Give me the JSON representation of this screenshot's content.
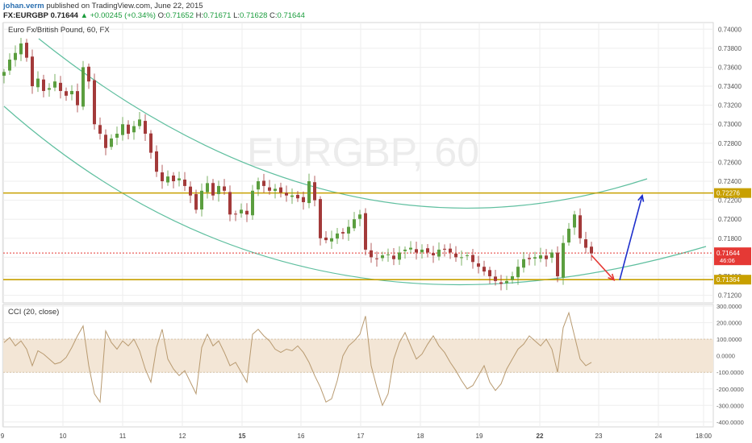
{
  "header": {
    "author": "johan.verm",
    "published_text": "published on TradingView.com, June 22, 2015",
    "symbol": "FX:EURGBP",
    "last": "0.71644",
    "change_arrow": "▲",
    "change": "+0.00245 (+0.34%)",
    "o_label": "O:",
    "o_value": "0.71652",
    "h_label": "H:",
    "h_value": "0.71671",
    "l_label": "L:",
    "l_value": "0.71628",
    "c_label": "C:",
    "c_value": "0.71644"
  },
  "watermark": "EURGBP, 60",
  "chart_data": [
    {
      "type": "candlestick",
      "title": "Euro Fx/British Pound, 60, FX",
      "x_tick_labels": [
        "9",
        "10",
        "11",
        "12",
        "15",
        "16",
        "17",
        "18",
        "19",
        "22",
        "23",
        "24",
        "18:00"
      ],
      "bold_tick_labels": [
        "15",
        "22"
      ],
      "y_ticks": [
        0.712,
        0.714,
        0.716,
        0.718,
        0.72,
        0.722,
        0.724,
        0.726,
        0.728,
        0.73,
        0.732,
        0.734,
        0.736,
        0.738,
        0.74
      ],
      "y_tick_labels": [
        "0.71200",
        "0.71400",
        "0.71600",
        "0.71800",
        "0.72000",
        "0.72200",
        "0.72400",
        "0.72600",
        "0.72800",
        "0.73000",
        "0.73200",
        "0.73400",
        "0.73600",
        "0.73800",
        "0.74000"
      ],
      "ylim": [
        0.7112,
        0.7407
      ],
      "grid": true,
      "price_path": [
        [
          0,
          0.7355
        ],
        [
          1,
          0.7368
        ],
        [
          2,
          0.7375
        ],
        [
          3,
          0.7385
        ],
        [
          4,
          0.737
        ],
        [
          5,
          0.734
        ],
        [
          6,
          0.7348
        ],
        [
          7,
          0.7335
        ],
        [
          8,
          0.7338
        ],
        [
          9,
          0.7345
        ],
        [
          10,
          0.7335
        ],
        [
          11,
          0.733
        ],
        [
          12,
          0.7335
        ],
        [
          13,
          0.732
        ],
        [
          14,
          0.736
        ],
        [
          15,
          0.7345
        ],
        [
          16,
          0.73
        ],
        [
          17,
          0.729
        ],
        [
          18,
          0.7275
        ],
        [
          19,
          0.7285
        ],
        [
          20,
          0.729
        ],
        [
          21,
          0.73
        ],
        [
          22,
          0.729
        ],
        [
          23,
          0.7298
        ],
        [
          24,
          0.7305
        ],
        [
          25,
          0.729
        ],
        [
          26,
          0.727
        ],
        [
          27,
          0.725
        ],
        [
          28,
          0.724
        ],
        [
          29,
          0.7245
        ],
        [
          30,
          0.724
        ],
        [
          31,
          0.7243
        ],
        [
          32,
          0.7235
        ],
        [
          33,
          0.7225
        ],
        [
          34,
          0.721
        ],
        [
          35,
          0.723
        ],
        [
          36,
          0.7238
        ],
        [
          37,
          0.7225
        ],
        [
          38,
          0.7235
        ],
        [
          39,
          0.723
        ],
        [
          40,
          0.7205
        ],
        [
          41,
          0.7205
        ],
        [
          42,
          0.721
        ],
        [
          43,
          0.7205
        ],
        [
          44,
          0.723
        ],
        [
          45,
          0.724
        ],
        [
          46,
          0.7235
        ],
        [
          47,
          0.723
        ],
        [
          48,
          0.7232
        ],
        [
          49,
          0.7228
        ],
        [
          50,
          0.7225
        ],
        [
          51,
          0.7225
        ],
        [
          52,
          0.7222
        ],
        [
          53,
          0.7218
        ],
        [
          54,
          0.724
        ],
        [
          55,
          0.722
        ],
        [
          56,
          0.718
        ],
        [
          57,
          0.7178
        ],
        [
          58,
          0.718
        ],
        [
          59,
          0.7185
        ],
        [
          60,
          0.7185
        ],
        [
          61,
          0.7192
        ],
        [
          62,
          0.72
        ],
        [
          63,
          0.7205
        ],
        [
          64,
          0.7168
        ],
        [
          65,
          0.716
        ],
        [
          66,
          0.7158
        ],
        [
          67,
          0.7162
        ],
        [
          68,
          0.7163
        ],
        [
          69,
          0.7158
        ],
        [
          70,
          0.7165
        ],
        [
          71,
          0.7168
        ],
        [
          72,
          0.717
        ],
        [
          73,
          0.7165
        ],
        [
          74,
          0.7168
        ],
        [
          75,
          0.7165
        ],
        [
          76,
          0.7162
        ],
        [
          77,
          0.7168
        ],
        [
          78,
          0.7168
        ],
        [
          79,
          0.7165
        ],
        [
          80,
          0.716
        ],
        [
          81,
          0.716
        ],
        [
          82,
          0.7162
        ],
        [
          83,
          0.7155
        ],
        [
          84,
          0.715
        ],
        [
          85,
          0.7145
        ],
        [
          86,
          0.714
        ],
        [
          87,
          0.7135
        ],
        [
          88,
          0.7132
        ],
        [
          89,
          0.7135
        ],
        [
          90,
          0.714
        ],
        [
          91,
          0.715
        ],
        [
          92,
          0.7158
        ],
        [
          93,
          0.7158
        ],
        [
          94,
          0.716
        ],
        [
          95,
          0.7162
        ],
        [
          96,
          0.7158
        ],
        [
          97,
          0.7165
        ],
        [
          98,
          0.714
        ],
        [
          99,
          0.7175
        ],
        [
          100,
          0.719
        ],
        [
          101,
          0.7205
        ],
        [
          102,
          0.718
        ],
        [
          103,
          0.717
        ],
        [
          104,
          0.7164
        ]
      ],
      "horizontal_levels": [
        {
          "value": 0.72276,
          "label": "0.72276",
          "color": "#c8a000"
        },
        {
          "value": 0.71364,
          "label": "0.71364",
          "color": "#c8a000"
        }
      ],
      "last_price": {
        "value": 0.71644,
        "label": "0.71644",
        "countdown": "46:06",
        "color": "#e53935"
      },
      "channel_color": "#5fbf9f",
      "bull_color": "#5b9e3f",
      "bear_color": "#a33a3a",
      "arrows": [
        {
          "name": "down-arrow",
          "color": "#e53935",
          "from": [
            104,
            0.7162
          ],
          "to": [
            108,
            0.7136
          ]
        },
        {
          "name": "up-arrow",
          "color": "#1e2fcc",
          "from": [
            109,
            0.7136
          ],
          "to": [
            113,
            0.7225
          ]
        }
      ]
    },
    {
      "type": "line",
      "title": "CCI (20, close)",
      "y_ticks": [
        -400,
        -300,
        -200,
        -100,
        0,
        100,
        200,
        300
      ],
      "y_tick_labels": [
        "-400.0000",
        "-300.0000",
        "-200.0000",
        "-100.0000",
        "0.0000",
        "100.0000",
        "200.0000",
        "300.0000"
      ],
      "ylim": [
        -430,
        310
      ],
      "band": [
        -100,
        100
      ],
      "band_color": "#f3e6d6",
      "line_color": "#b89a70",
      "values": [
        80,
        110,
        60,
        90,
        40,
        -60,
        30,
        10,
        -20,
        -50,
        -40,
        -10,
        50,
        120,
        180,
        -60,
        -230,
        -280,
        150,
        80,
        40,
        90,
        60,
        100,
        30,
        -80,
        -160,
        50,
        160,
        -20,
        -80,
        -120,
        -90,
        -160,
        -230,
        50,
        130,
        60,
        90,
        20,
        -60,
        -40,
        -100,
        -160,
        130,
        160,
        120,
        90,
        40,
        20,
        40,
        30,
        60,
        20,
        -40,
        -120,
        -190,
        -280,
        -260,
        -150,
        0,
        60,
        90,
        130,
        240,
        -60,
        -190,
        -300,
        -230,
        -20,
        80,
        140,
        60,
        -20,
        10,
        70,
        120,
        60,
        20,
        -40,
        -90,
        -150,
        -200,
        -180,
        -120,
        -60,
        -160,
        -210,
        -170,
        -80,
        -20,
        40,
        70,
        120,
        90,
        60,
        100,
        40,
        -100,
        170,
        260,
        120,
        -20,
        -60,
        -40
      ]
    }
  ]
}
